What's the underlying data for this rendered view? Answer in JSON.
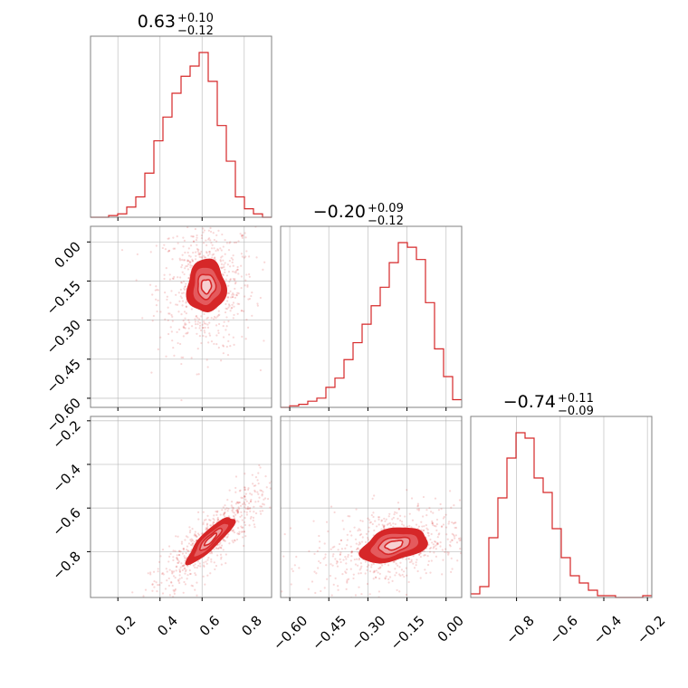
{
  "chart_data": {
    "type": "corner",
    "colors": {
      "main": "#d62728",
      "fill_light": "#f6d2d3",
      "fill_mid": "#ee9c9e",
      "fill_dark": "#e45a5d",
      "fill_core": "#d62728",
      "grid": "#b0b0b0",
      "frame": "#808080"
    },
    "grid": true,
    "parameters": [
      {
        "title_value": "0.63",
        "title_plus": "+0.10",
        "title_minus": "−0.12",
        "range": [
          0.07,
          0.93
        ],
        "ticks": [
          0.2,
          0.4,
          0.6,
          0.8
        ],
        "tick_labels": [
          "0.2",
          "0.4",
          "0.6",
          "0.8"
        ]
      },
      {
        "title_value": "−0.20",
        "title_plus": "+0.09",
        "title_minus": "−0.12",
        "range": [
          -0.635,
          0.06
        ],
        "ticks": [
          -0.6,
          -0.45,
          -0.3,
          -0.15,
          0.0
        ],
        "tick_labels": [
          "−0.60",
          "−0.45",
          "−0.30",
          "−0.15",
          "0.00"
        ]
      },
      {
        "title_value": "−0.74",
        "title_plus": "+0.11",
        "title_minus": "−0.09",
        "range": [
          -1.01,
          -0.18
        ],
        "ticks": [
          -0.8,
          -0.6,
          -0.4,
          -0.2
        ],
        "tick_labels": [
          "−0.8",
          "−0.6",
          "−0.4",
          "−0.2"
        ]
      }
    ],
    "histograms": [
      {
        "param": 0,
        "edges": [
          0.07,
          0.113,
          0.156,
          0.199,
          0.242,
          0.285,
          0.328,
          0.371,
          0.414,
          0.457,
          0.5,
          0.543,
          0.586,
          0.629,
          0.672,
          0.715,
          0.758,
          0.801,
          0.844,
          0.887,
          0.93
        ],
        "counts": [
          0,
          0,
          1,
          2,
          6,
          12,
          26,
          45,
          59,
          73,
          83,
          89,
          97,
          80,
          54,
          33,
          12,
          5,
          2,
          0
        ]
      },
      {
        "param": 1,
        "edges": [
          -0.635,
          -0.60025,
          -0.5655,
          -0.53075,
          -0.496,
          -0.46125,
          -0.4265,
          -0.39175,
          -0.357,
          -0.32225,
          -0.2875,
          -0.25275,
          -0.218,
          -0.18325,
          -0.1485,
          -0.11375,
          -0.079,
          -0.04425,
          -0.0095,
          0.02525,
          0.06
        ],
        "counts": [
          0,
          1,
          2,
          4,
          6,
          13,
          19,
          31,
          42,
          54,
          66,
          78,
          94,
          107,
          104,
          96,
          68,
          38,
          20,
          5
        ]
      },
      {
        "param": 2,
        "edges": [
          -1.01,
          -0.9685,
          -0.927,
          -0.8855,
          -0.844,
          -0.8025,
          -0.761,
          -0.7195,
          -0.678,
          -0.6365,
          -0.595,
          -0.5535,
          -0.512,
          -0.4705,
          -0.429,
          -0.3875,
          -0.346,
          -0.3045,
          -0.263,
          -0.2215,
          -0.18
        ],
        "counts": [
          2,
          6,
          33,
          55,
          77,
          91,
          88,
          66,
          58,
          38,
          22,
          12,
          8,
          4,
          1,
          1,
          0,
          0,
          0,
          1
        ]
      }
    ],
    "pairs": [
      {
        "x_param": 0,
        "y_param": 1,
        "center": [
          0.62,
          -0.17
        ],
        "sigma": [
          0.085,
          0.095
        ],
        "rho": 0.02,
        "levels": [
          0.28,
          0.5,
          0.78,
          1.05
        ]
      },
      {
        "x_param": 0,
        "y_param": 2,
        "center": [
          0.64,
          -0.745
        ],
        "sigma": [
          0.105,
          0.1
        ],
        "rho": 0.88,
        "levels": [
          0.28,
          0.5,
          0.78,
          1.05
        ]
      },
      {
        "x_param": 1,
        "y_param": 2,
        "center": [
          -0.2,
          -0.77
        ],
        "sigma": [
          0.12,
          0.075
        ],
        "rho": 0.38,
        "levels": [
          0.28,
          0.5,
          0.78,
          1.05
        ]
      }
    ]
  }
}
